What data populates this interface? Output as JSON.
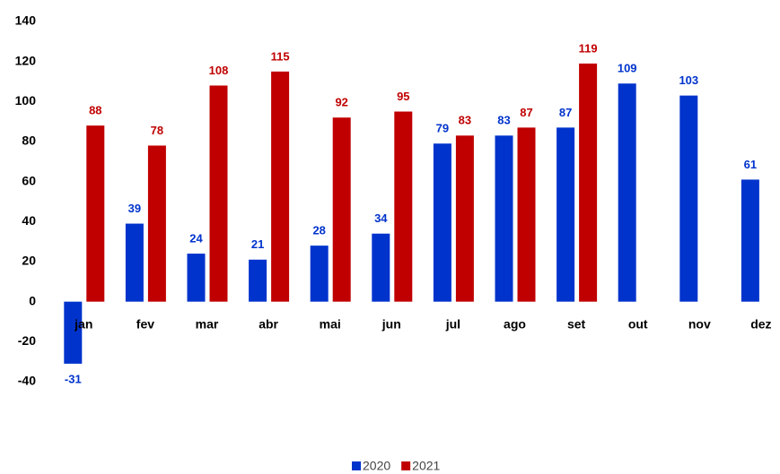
{
  "chart_data": {
    "type": "bar",
    "categories": [
      "jan",
      "fev",
      "mar",
      "abr",
      "mai",
      "jun",
      "jul",
      "ago",
      "set",
      "out",
      "nov",
      "dez"
    ],
    "series": [
      {
        "name": "2020",
        "color": "#0033cc",
        "values": [
          -31,
          39,
          24,
          21,
          28,
          34,
          79,
          83,
          87,
          109,
          103,
          61
        ]
      },
      {
        "name": "2021",
        "color": "#c00000",
        "values": [
          88,
          78,
          108,
          115,
          92,
          95,
          83,
          87,
          119,
          null,
          null,
          null
        ]
      }
    ],
    "ylim": [
      -40,
      140
    ],
    "yticks": [
      -40,
      -20,
      0,
      20,
      40,
      60,
      80,
      100,
      120,
      140
    ],
    "grid": false
  }
}
